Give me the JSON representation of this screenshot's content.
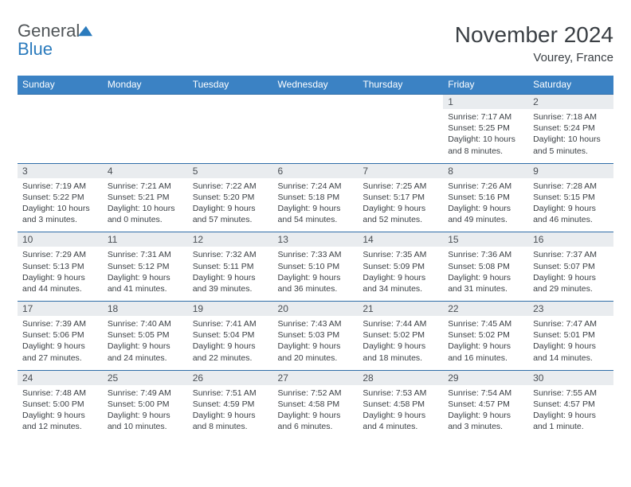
{
  "brand": {
    "part1": "General",
    "part2": "Blue"
  },
  "title": "November 2024",
  "location": "Vourey, France",
  "day_headers": [
    "Sunday",
    "Monday",
    "Tuesday",
    "Wednesday",
    "Thursday",
    "Friday",
    "Saturday"
  ],
  "styles": {
    "header_bg": "#3b82c4",
    "header_fg": "#ffffff",
    "row_border": "#2f6da8",
    "daynum_bg": "#e9ecef",
    "text_color": "#3a3f44",
    "logo_gray": "#505558",
    "logo_blue": "#2b7bbd",
    "body_font_size": 10.5,
    "header_font_size": 12,
    "title_font_size": 28,
    "location_font_size": 15
  },
  "weeks": [
    [
      null,
      null,
      null,
      null,
      null,
      {
        "n": "1",
        "sr": "7:17 AM",
        "ss": "5:25 PM",
        "dl": "10 hours and 8 minutes."
      },
      {
        "n": "2",
        "sr": "7:18 AM",
        "ss": "5:24 PM",
        "dl": "10 hours and 5 minutes."
      }
    ],
    [
      {
        "n": "3",
        "sr": "7:19 AM",
        "ss": "5:22 PM",
        "dl": "10 hours and 3 minutes."
      },
      {
        "n": "4",
        "sr": "7:21 AM",
        "ss": "5:21 PM",
        "dl": "10 hours and 0 minutes."
      },
      {
        "n": "5",
        "sr": "7:22 AM",
        "ss": "5:20 PM",
        "dl": "9 hours and 57 minutes."
      },
      {
        "n": "6",
        "sr": "7:24 AM",
        "ss": "5:18 PM",
        "dl": "9 hours and 54 minutes."
      },
      {
        "n": "7",
        "sr": "7:25 AM",
        "ss": "5:17 PM",
        "dl": "9 hours and 52 minutes."
      },
      {
        "n": "8",
        "sr": "7:26 AM",
        "ss": "5:16 PM",
        "dl": "9 hours and 49 minutes."
      },
      {
        "n": "9",
        "sr": "7:28 AM",
        "ss": "5:15 PM",
        "dl": "9 hours and 46 minutes."
      }
    ],
    [
      {
        "n": "10",
        "sr": "7:29 AM",
        "ss": "5:13 PM",
        "dl": "9 hours and 44 minutes."
      },
      {
        "n": "11",
        "sr": "7:31 AM",
        "ss": "5:12 PM",
        "dl": "9 hours and 41 minutes."
      },
      {
        "n": "12",
        "sr": "7:32 AM",
        "ss": "5:11 PM",
        "dl": "9 hours and 39 minutes."
      },
      {
        "n": "13",
        "sr": "7:33 AM",
        "ss": "5:10 PM",
        "dl": "9 hours and 36 minutes."
      },
      {
        "n": "14",
        "sr": "7:35 AM",
        "ss": "5:09 PM",
        "dl": "9 hours and 34 minutes."
      },
      {
        "n": "15",
        "sr": "7:36 AM",
        "ss": "5:08 PM",
        "dl": "9 hours and 31 minutes."
      },
      {
        "n": "16",
        "sr": "7:37 AM",
        "ss": "5:07 PM",
        "dl": "9 hours and 29 minutes."
      }
    ],
    [
      {
        "n": "17",
        "sr": "7:39 AM",
        "ss": "5:06 PM",
        "dl": "9 hours and 27 minutes."
      },
      {
        "n": "18",
        "sr": "7:40 AM",
        "ss": "5:05 PM",
        "dl": "9 hours and 24 minutes."
      },
      {
        "n": "19",
        "sr": "7:41 AM",
        "ss": "5:04 PM",
        "dl": "9 hours and 22 minutes."
      },
      {
        "n": "20",
        "sr": "7:43 AM",
        "ss": "5:03 PM",
        "dl": "9 hours and 20 minutes."
      },
      {
        "n": "21",
        "sr": "7:44 AM",
        "ss": "5:02 PM",
        "dl": "9 hours and 18 minutes."
      },
      {
        "n": "22",
        "sr": "7:45 AM",
        "ss": "5:02 PM",
        "dl": "9 hours and 16 minutes."
      },
      {
        "n": "23",
        "sr": "7:47 AM",
        "ss": "5:01 PM",
        "dl": "9 hours and 14 minutes."
      }
    ],
    [
      {
        "n": "24",
        "sr": "7:48 AM",
        "ss": "5:00 PM",
        "dl": "9 hours and 12 minutes."
      },
      {
        "n": "25",
        "sr": "7:49 AM",
        "ss": "5:00 PM",
        "dl": "9 hours and 10 minutes."
      },
      {
        "n": "26",
        "sr": "7:51 AM",
        "ss": "4:59 PM",
        "dl": "9 hours and 8 minutes."
      },
      {
        "n": "27",
        "sr": "7:52 AM",
        "ss": "4:58 PM",
        "dl": "9 hours and 6 minutes."
      },
      {
        "n": "28",
        "sr": "7:53 AM",
        "ss": "4:58 PM",
        "dl": "9 hours and 4 minutes."
      },
      {
        "n": "29",
        "sr": "7:54 AM",
        "ss": "4:57 PM",
        "dl": "9 hours and 3 minutes."
      },
      {
        "n": "30",
        "sr": "7:55 AM",
        "ss": "4:57 PM",
        "dl": "9 hours and 1 minute."
      }
    ]
  ],
  "labels": {
    "sunrise": "Sunrise: ",
    "sunset": "Sunset: ",
    "daylight": "Daylight: "
  }
}
